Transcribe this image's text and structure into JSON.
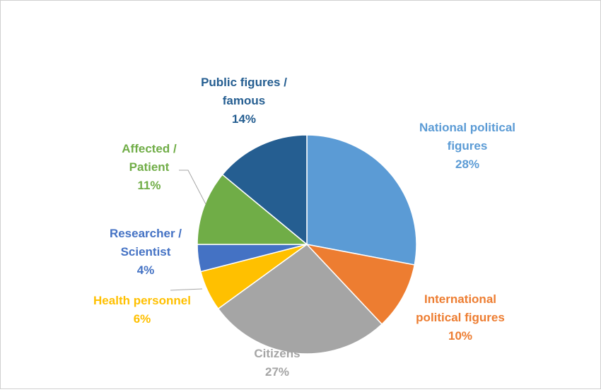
{
  "chart_data": {
    "type": "pie",
    "title": "",
    "slices": [
      {
        "name": "National political figures",
        "label_lines": [
          "National political",
          "figures"
        ],
        "value": 28,
        "value_label": "28%",
        "color": "#5B9BD5"
      },
      {
        "name": "International political figures",
        "label_lines": [
          "International",
          "political figures"
        ],
        "value": 10,
        "value_label": "10%",
        "color": "#ED7D31"
      },
      {
        "name": "Citizens",
        "label_lines": [
          "Citizens"
        ],
        "value": 27,
        "value_label": "27%",
        "color": "#A5A5A5"
      },
      {
        "name": "Health personnel",
        "label_lines": [
          "Health personnel"
        ],
        "value": 6,
        "value_label": "6%",
        "color": "#FFC000"
      },
      {
        "name": "Researcher / Scientist",
        "label_lines": [
          "Researcher /",
          "Scientist"
        ],
        "value": 4,
        "value_label": "4%",
        "color": "#4472C4"
      },
      {
        "name": "Affected / Patient",
        "label_lines": [
          "Affected /",
          "Patient"
        ],
        "value": 11,
        "value_label": "11%",
        "color": "#70AD47"
      },
      {
        "name": "Public figures / famous",
        "label_lines": [
          "Public figures /",
          "famous"
        ],
        "value": 14,
        "value_label": "14%",
        "color": "#255E91"
      }
    ],
    "legend": "none",
    "data_labels": "outside-with-leader-lines"
  }
}
